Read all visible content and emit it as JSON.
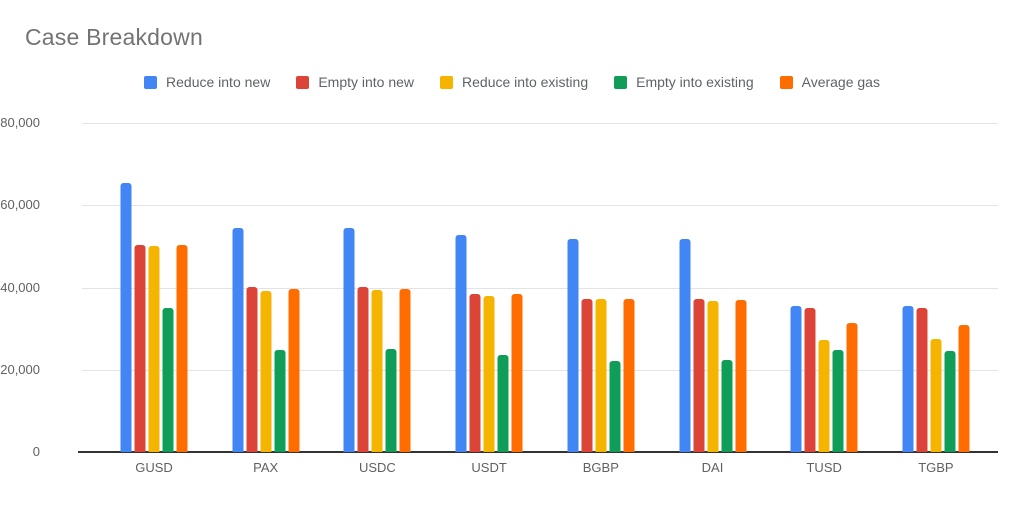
{
  "title": "Case Breakdown",
  "chart_data": {
    "type": "bar",
    "title": "Case Breakdown",
    "categories": [
      "GUSD",
      "PAX",
      "USDC",
      "USDT",
      "BGBP",
      "DAI",
      "TUSD",
      "TGBP"
    ],
    "series": [
      {
        "name": "Reduce into new",
        "color": "#4285F4",
        "values": [
          65400,
          54400,
          54500,
          52800,
          51900,
          51900,
          35400,
          35500
        ]
      },
      {
        "name": "Empty into new",
        "color": "#DB4437",
        "values": [
          50400,
          40200,
          40100,
          38400,
          37200,
          37300,
          35000,
          35100
        ]
      },
      {
        "name": "Reduce into existing",
        "color": "#F4B400",
        "values": [
          50100,
          39200,
          39300,
          37900,
          37200,
          36800,
          27300,
          27400
        ]
      },
      {
        "name": "Empty into existing",
        "color": "#0F9D58",
        "values": [
          35100,
          24800,
          25000,
          23500,
          22100,
          22500,
          24700,
          24500
        ]
      },
      {
        "name": "Average gas",
        "color": "#FF6D00",
        "values": [
          50400,
          39700,
          39600,
          38500,
          37200,
          37000,
          31300,
          31000
        ]
      }
    ],
    "xlabel": "",
    "ylabel": "",
    "ylim": [
      0,
      80000
    ],
    "yticks": [
      0,
      20000,
      40000,
      60000,
      80000
    ],
    "ytick_labels": [
      "0",
      "20,000",
      "40,000",
      "60,000",
      "80,000"
    ],
    "grid": true,
    "legend_position": "top",
    "colors": {
      "grid": "#e3e3e3",
      "axis_line": "#333333",
      "axis_text": "#616161",
      "title_text": "#737373",
      "legend_text": "#5f6368",
      "background": "#ffffff"
    }
  }
}
